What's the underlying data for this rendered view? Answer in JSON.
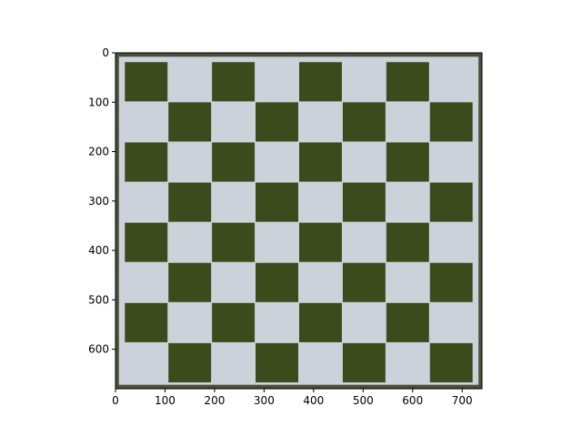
{
  "image": {
    "subject": "chessboard",
    "colors": {
      "dark_square": "#3d4a1c",
      "light_square": "#cdd1d9",
      "board_border": "#47513a",
      "frame_outline": "#000000"
    }
  },
  "axes": {
    "xlim": [
      0,
      740
    ],
    "ylim_top_to_bottom": [
      0,
      680
    ],
    "x_ticks": [
      "0",
      "100",
      "200",
      "300",
      "400",
      "500",
      "600",
      "700"
    ],
    "y_ticks": [
      "0",
      "100",
      "200",
      "300",
      "400",
      "500",
      "600"
    ]
  }
}
